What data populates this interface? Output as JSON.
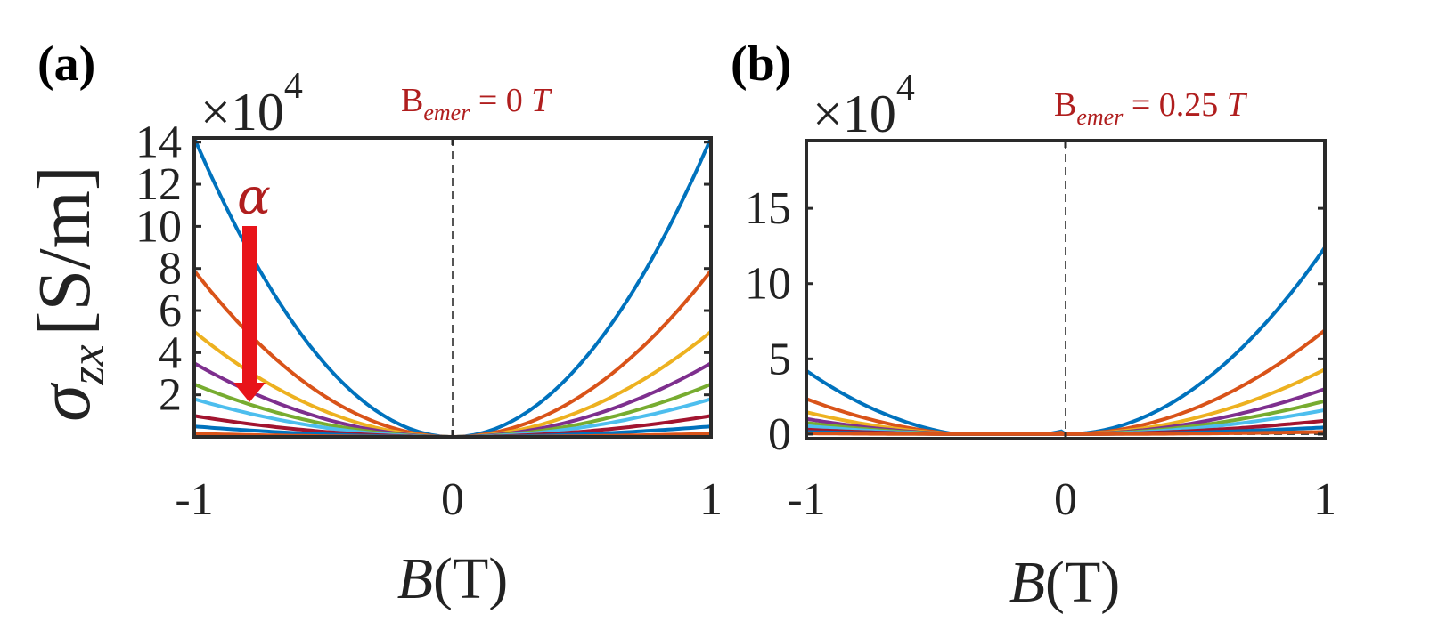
{
  "figure": {
    "ylabel": "σ_zx [S/m]",
    "ylabel_main": "σ",
    "ylabel_sub": "zx",
    "ylabel_unit": "[S/m]",
    "arrow_label": "α",
    "accent_color": "#b01e1e",
    "arrow_color": "#e8141a"
  },
  "chart_data": [
    {
      "panel_label": "(a)",
      "type": "line",
      "annotation_prefix": "B",
      "annotation_sub": "emer",
      "annotation_eq": " =  0 ",
      "annotation_unit": "T",
      "exponent_label": "×10",
      "exponent_power": "4",
      "xlabel": "B(T)",
      "xlabel_var": "B",
      "xlabel_rest": "(T)",
      "xlim": [
        -1,
        1
      ],
      "ylim": [
        0,
        14.2
      ],
      "xticks": [
        -1,
        0,
        1
      ],
      "xtick_labels": [
        "-1",
        "0",
        "1"
      ],
      "yticks": [
        2,
        4,
        6,
        8,
        10,
        12,
        14
      ],
      "ytick_labels": [
        "2",
        "4",
        "6",
        "8",
        "10",
        "12",
        "14"
      ],
      "b_emer": 0,
      "dashed_vline_x": 0,
      "dashed_hline_y": 0,
      "series": [
        {
          "color": "#0072BD",
          "a": 14.2
        },
        {
          "color": "#D95319",
          "a": 7.9
        },
        {
          "color": "#EDB120",
          "a": 5.0
        },
        {
          "color": "#7E2F8E",
          "a": 3.5
        },
        {
          "color": "#77AC30",
          "a": 2.5
        },
        {
          "color": "#4DBEEE",
          "a": 1.8
        },
        {
          "color": "#A2142F",
          "a": 1.0
        },
        {
          "color": "#0072BD",
          "a": 0.5
        },
        {
          "color": "#D95319",
          "a": 0.15
        }
      ]
    },
    {
      "panel_label": "(b)",
      "type": "line",
      "annotation_prefix": "B",
      "annotation_sub": "emer",
      "annotation_eq": " =  0.25 ",
      "annotation_unit": "T",
      "exponent_label": "×10",
      "exponent_power": "4",
      "xlabel": "B(T)",
      "xlabel_var": "B",
      "xlabel_rest": "(T)",
      "xlim": [
        -1,
        1
      ],
      "ylim": [
        -0.3,
        19.5
      ],
      "xticks": [
        -1,
        0,
        1
      ],
      "xtick_labels": [
        "-1",
        "0",
        "1"
      ],
      "yticks": [
        0,
        5,
        10,
        15
      ],
      "ytick_labels": [
        "0",
        "5",
        "10",
        "15"
      ],
      "b_emer": 0.25,
      "dashed_vline_x": 0,
      "dashed_hline_y": 0,
      "series": [
        {
          "color": "#0072BD",
          "a": 12.4
        },
        {
          "color": "#D95319",
          "a": 6.9
        },
        {
          "color": "#EDB120",
          "a": 4.3
        },
        {
          "color": "#7E2F8E",
          "a": 3.0
        },
        {
          "color": "#77AC30",
          "a": 2.2
        },
        {
          "color": "#4DBEEE",
          "a": 1.6
        },
        {
          "color": "#A2142F",
          "a": 0.9
        },
        {
          "color": "#0072BD",
          "a": 0.45
        },
        {
          "color": "#D95319",
          "a": 0.15
        }
      ]
    }
  ]
}
